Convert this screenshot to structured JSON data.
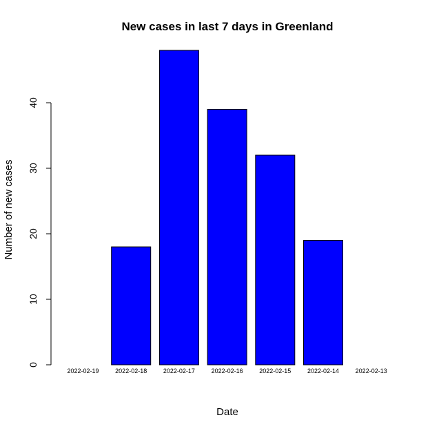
{
  "chart_data": {
    "type": "bar",
    "title": "New cases in last 7 days in Greenland",
    "xlabel": "Date",
    "ylabel": "Number of new cases",
    "categories": [
      "2022-02-19",
      "2022-02-18",
      "2022-02-17",
      "2022-02-16",
      "2022-02-15",
      "2022-02-14",
      "2022-02-13"
    ],
    "values": [
      0,
      18,
      48,
      39,
      32,
      19,
      0
    ],
    "ylim": [
      0,
      48
    ],
    "yticks": [
      0,
      10,
      20,
      30,
      40
    ],
    "bar_color": "#0000ff",
    "bar_edge_color": "#000000",
    "grid": false
  }
}
